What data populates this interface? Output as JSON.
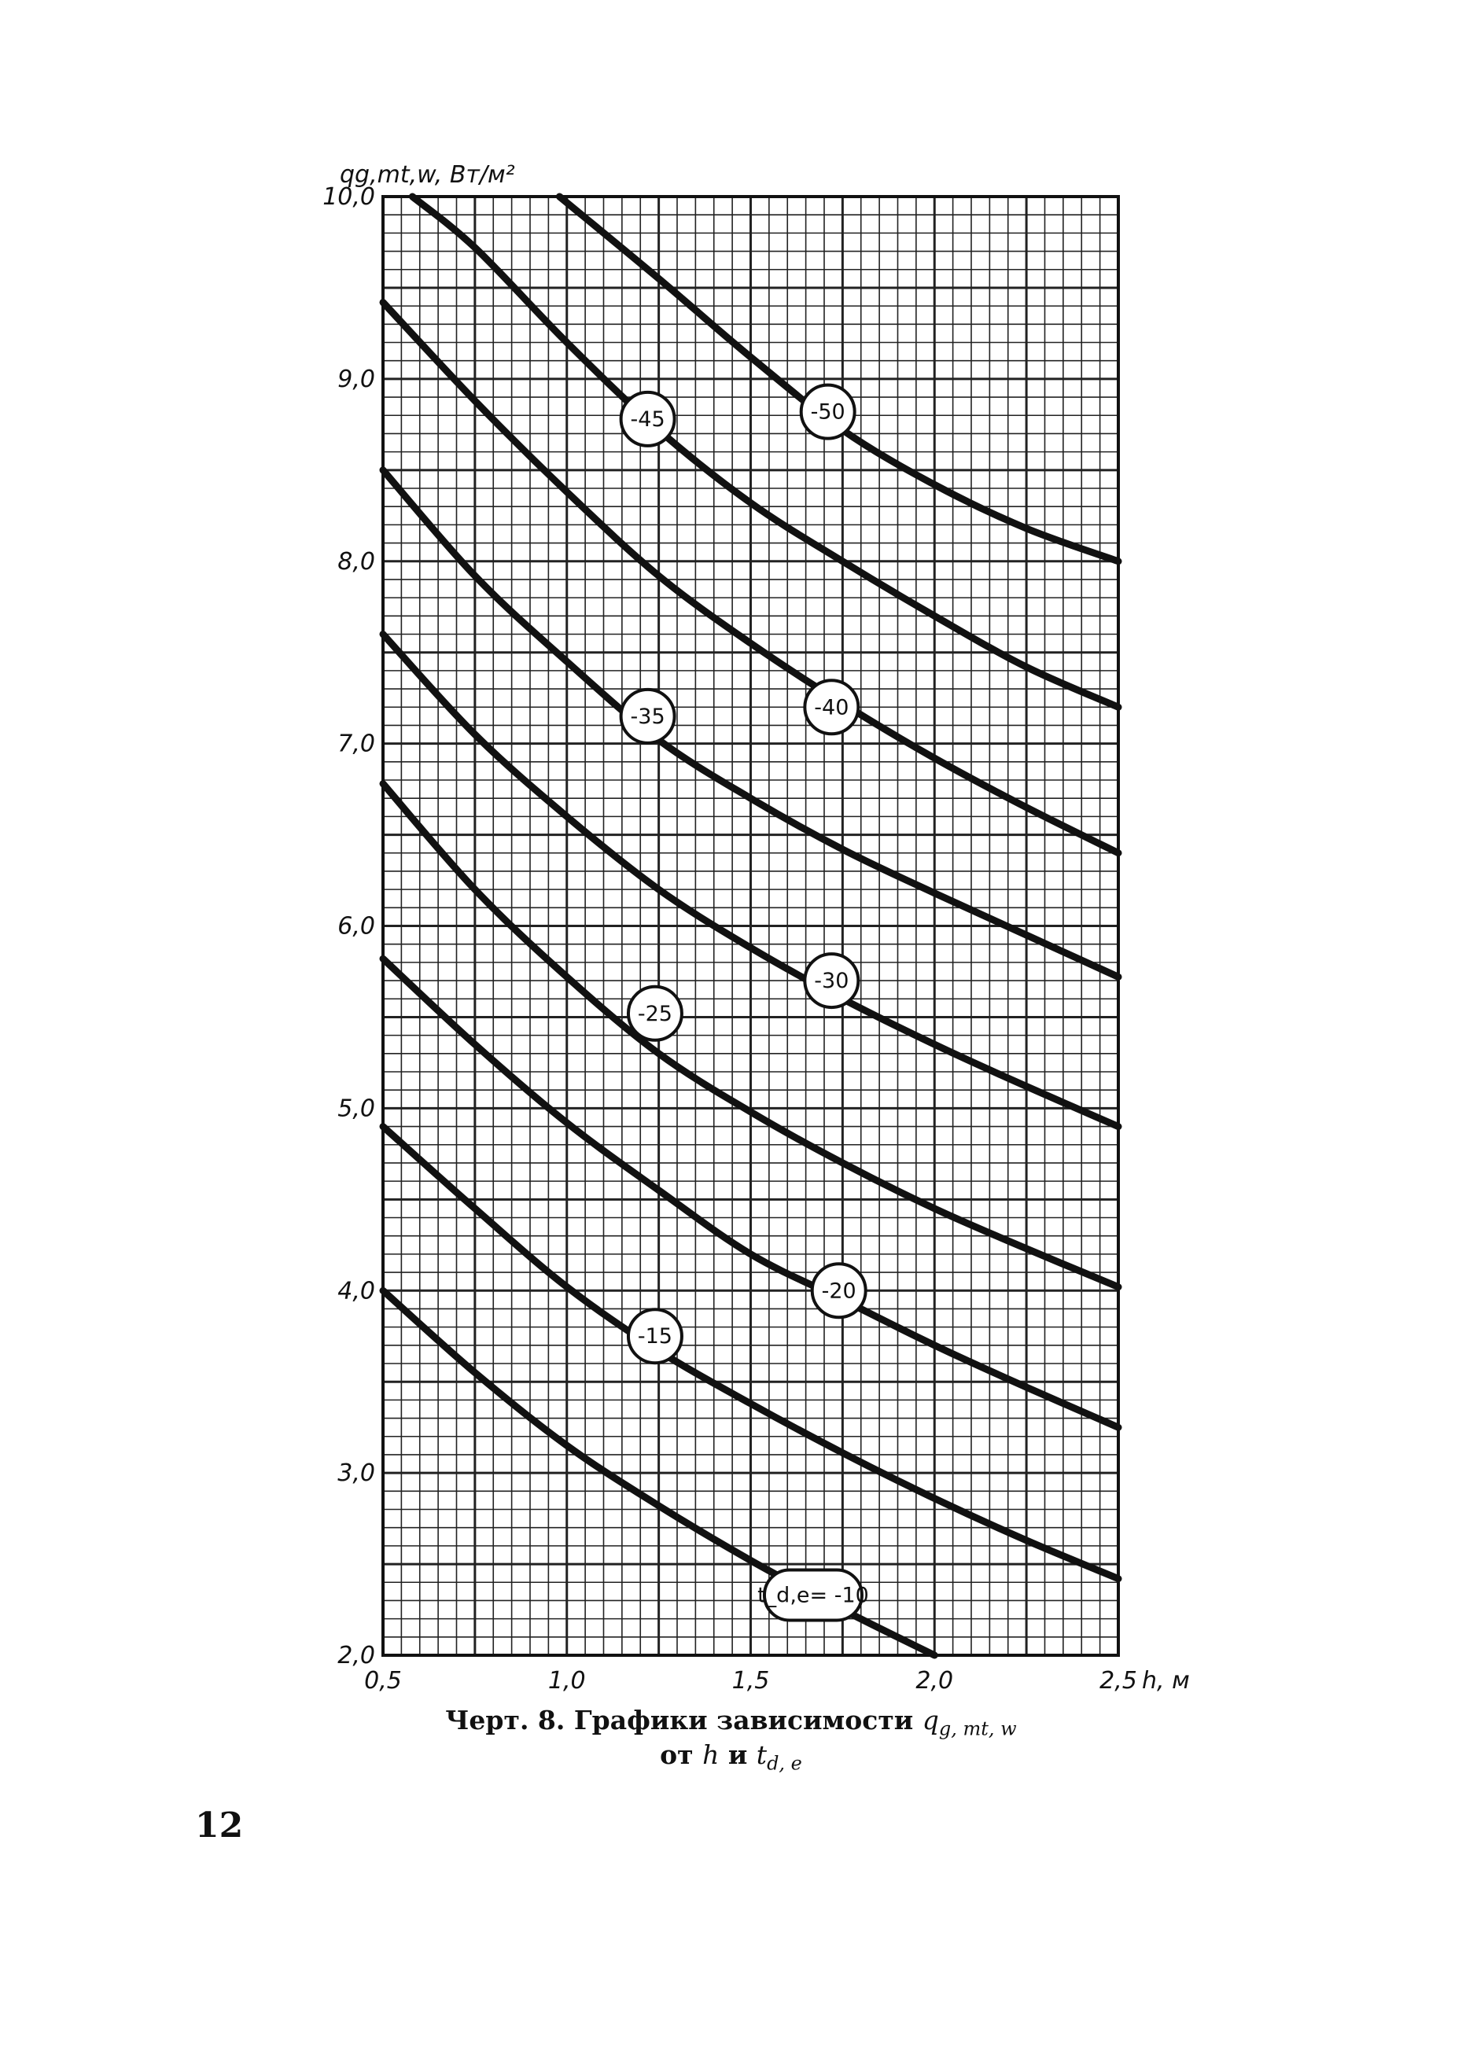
{
  "chart_data": {
    "type": "line",
    "ylabel": "qg,mt,w, Вт/м²",
    "xlabel": "h, м",
    "x_ticks": [
      "0,5",
      "1,0",
      "1,5",
      "2,0",
      "2,5"
    ],
    "y_ticks": [
      "2,0",
      "3,0",
      "4,0",
      "5,0",
      "6,0",
      "7,0",
      "8,0",
      "9,0",
      "10,0"
    ],
    "xlim": [
      0.5,
      2.5
    ],
    "ylim": [
      2.0,
      10.0
    ],
    "grid": true,
    "series": [
      {
        "name": "-10",
        "label": "t_d,e= -10",
        "label_at": [
          1.67,
          2.33
        ],
        "points": [
          [
            0.5,
            4.0
          ],
          [
            0.75,
            3.55
          ],
          [
            1.0,
            3.15
          ],
          [
            1.25,
            2.82
          ],
          [
            1.5,
            2.52
          ],
          [
            1.75,
            2.25
          ],
          [
            2.0,
            2.0
          ]
        ]
      },
      {
        "name": "-15",
        "label": "-15",
        "label_at": [
          1.24,
          3.75
        ],
        "points": [
          [
            0.5,
            4.9
          ],
          [
            0.75,
            4.45
          ],
          [
            1.0,
            4.02
          ],
          [
            1.25,
            3.67
          ],
          [
            1.5,
            3.38
          ],
          [
            1.75,
            3.11
          ],
          [
            2.0,
            2.86
          ],
          [
            2.25,
            2.63
          ],
          [
            2.5,
            2.42
          ]
        ]
      },
      {
        "name": "-20",
        "label": "-20",
        "label_at": [
          1.74,
          4.0
        ],
        "points": [
          [
            0.5,
            5.82
          ],
          [
            0.75,
            5.35
          ],
          [
            1.0,
            4.92
          ],
          [
            1.25,
            4.55
          ],
          [
            1.5,
            4.2
          ],
          [
            1.75,
            3.95
          ],
          [
            2.0,
            3.7
          ],
          [
            2.25,
            3.47
          ],
          [
            2.5,
            3.25
          ]
        ]
      },
      {
        "name": "-25",
        "label": "-25",
        "label_at": [
          1.24,
          5.52
        ],
        "points": [
          [
            0.5,
            6.78
          ],
          [
            0.75,
            6.2
          ],
          [
            1.0,
            5.72
          ],
          [
            1.25,
            5.3
          ],
          [
            1.5,
            4.98
          ],
          [
            1.75,
            4.7
          ],
          [
            2.0,
            4.45
          ],
          [
            2.25,
            4.23
          ],
          [
            2.5,
            4.02
          ]
        ]
      },
      {
        "name": "-30",
        "label": "-30",
        "label_at": [
          1.72,
          5.7
        ],
        "points": [
          [
            0.5,
            7.6
          ],
          [
            0.75,
            7.05
          ],
          [
            1.0,
            6.6
          ],
          [
            1.25,
            6.2
          ],
          [
            1.5,
            5.88
          ],
          [
            1.75,
            5.6
          ],
          [
            2.0,
            5.35
          ],
          [
            2.25,
            5.12
          ],
          [
            2.5,
            4.9
          ]
        ]
      },
      {
        "name": "-35",
        "label": "-35",
        "label_at": [
          1.22,
          7.15
        ],
        "points": [
          [
            0.5,
            8.5
          ],
          [
            0.75,
            7.92
          ],
          [
            1.0,
            7.45
          ],
          [
            1.25,
            7.02
          ],
          [
            1.5,
            6.7
          ],
          [
            1.75,
            6.42
          ],
          [
            2.0,
            6.18
          ],
          [
            2.25,
            5.95
          ],
          [
            2.5,
            5.72
          ]
        ]
      },
      {
        "name": "-40",
        "label": "-40",
        "label_at": [
          1.72,
          7.2
        ],
        "points": [
          [
            0.5,
            9.42
          ],
          [
            0.75,
            8.88
          ],
          [
            1.0,
            8.38
          ],
          [
            1.25,
            7.92
          ],
          [
            1.5,
            7.55
          ],
          [
            1.75,
            7.22
          ],
          [
            2.0,
            6.92
          ],
          [
            2.25,
            6.65
          ],
          [
            2.5,
            6.4
          ]
        ]
      },
      {
        "name": "-45",
        "label": "-45",
        "label_at": [
          1.22,
          8.78
        ],
        "points": [
          [
            0.58,
            10.0
          ],
          [
            0.75,
            9.72
          ],
          [
            1.0,
            9.2
          ],
          [
            1.25,
            8.72
          ],
          [
            1.5,
            8.32
          ],
          [
            1.75,
            8.0
          ],
          [
            2.0,
            7.7
          ],
          [
            2.25,
            7.42
          ],
          [
            2.5,
            7.2
          ]
        ]
      },
      {
        "name": "-50",
        "label": "-50",
        "label_at": [
          1.71,
          8.82
        ],
        "points": [
          [
            0.98,
            10.0
          ],
          [
            1.25,
            9.55
          ],
          [
            1.5,
            9.12
          ],
          [
            1.75,
            8.72
          ],
          [
            2.0,
            8.42
          ],
          [
            2.25,
            8.18
          ],
          [
            2.5,
            8.0
          ]
        ]
      }
    ]
  },
  "caption": {
    "line1_prefix": "Черт. 8.  Графики зависимости ",
    "line1_symbol": "q",
    "line1_symbol_sub": "g, mt, w",
    "line2_prefix": "от ",
    "line2_symbol_h": "h",
    "line2_and": " и ",
    "line2_symbol_t": "t",
    "line2_symbol_t_sub": "d, e"
  },
  "page_number": "12"
}
